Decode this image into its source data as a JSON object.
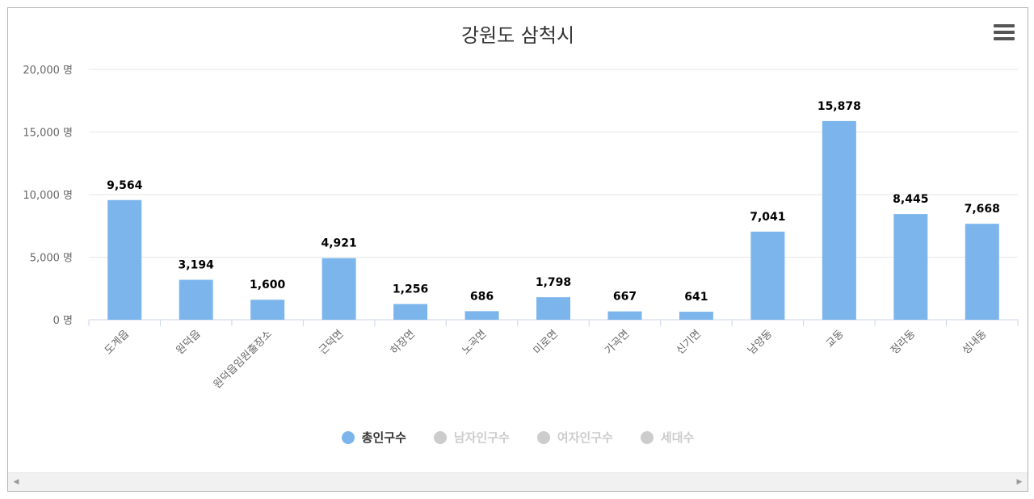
{
  "chart_data": {
    "type": "bar",
    "title": "강원도 삼척시",
    "categories": [
      "도계읍",
      "원덕읍",
      "원덕읍임원출장소",
      "근덕면",
      "하장면",
      "노곡면",
      "미로면",
      "가곡면",
      "신기면",
      "남양동",
      "교동",
      "정라동",
      "성내동"
    ],
    "values": [
      9564,
      3194,
      1600,
      4921,
      1256,
      686,
      1798,
      667,
      641,
      7041,
      15878,
      8445,
      7668
    ],
    "value_labels": [
      "9,564",
      "3,194",
      "1,600",
      "4,921",
      "1,256",
      "686",
      "1,798",
      "667",
      "641",
      "7,041",
      "15,878",
      "8,445",
      "7,668"
    ],
    "ylim": [
      0,
      20000
    ],
    "yticks": [
      0,
      5000,
      10000,
      15000,
      20000
    ],
    "ytick_labels": [
      "0 명",
      "5,000 명",
      "10,000 명",
      "15,000 명",
      "20,000 명"
    ],
    "grid": true,
    "legend_position": "bottom",
    "series": [
      {
        "name": "총인구수",
        "active": true
      },
      {
        "name": "남자인구수",
        "active": false
      },
      {
        "name": "여자인구수",
        "active": false
      },
      {
        "name": "세대수",
        "active": false
      }
    ],
    "colors": {
      "bar": "#7cb5ec",
      "grid": "#e6e6e6",
      "axis": "#ccd6eb",
      "inactive": "#cccccc"
    }
  },
  "icons": {
    "menu": "hamburger-menu-icon",
    "scroll_left": "chevron-left-icon",
    "scroll_right": "chevron-right-icon"
  }
}
